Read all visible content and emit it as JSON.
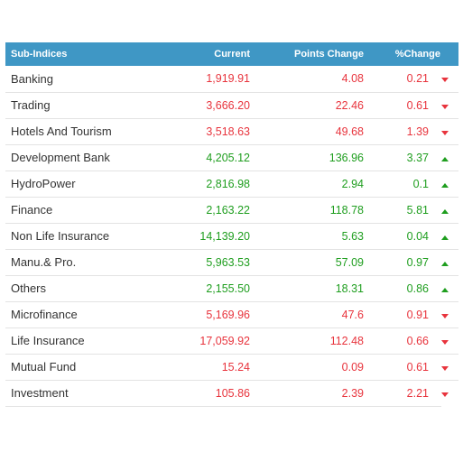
{
  "table": {
    "headers": {
      "name": "Sub-Indices",
      "current": "Current",
      "points": "Points Change",
      "percent": "%Change"
    },
    "rows": [
      {
        "name": "Banking",
        "current": "1,919.91",
        "points": "4.08",
        "percent": "0.21",
        "direction": "down"
      },
      {
        "name": "Trading",
        "current": "3,666.20",
        "points": "22.46",
        "percent": "0.61",
        "direction": "down"
      },
      {
        "name": "Hotels And Tourism",
        "current": "3,518.63",
        "points": "49.68",
        "percent": "1.39",
        "direction": "down"
      },
      {
        "name": "Development Bank",
        "current": "4,205.12",
        "points": "136.96",
        "percent": "3.37",
        "direction": "up"
      },
      {
        "name": "HydroPower",
        "current": "2,816.98",
        "points": "2.94",
        "percent": "0.1",
        "direction": "up"
      },
      {
        "name": "Finance",
        "current": "2,163.22",
        "points": "118.78",
        "percent": "5.81",
        "direction": "up"
      },
      {
        "name": "Non Life Insurance",
        "current": "14,139.20",
        "points": "5.63",
        "percent": "0.04",
        "direction": "up"
      },
      {
        "name": "Manu.& Pro.",
        "current": "5,963.53",
        "points": "57.09",
        "percent": "0.97",
        "direction": "up"
      },
      {
        "name": "Others",
        "current": "2,155.50",
        "points": "18.31",
        "percent": "0.86",
        "direction": "up"
      },
      {
        "name": "Microfinance",
        "current": "5,169.96",
        "points": "47.6",
        "percent": "0.91",
        "direction": "down"
      },
      {
        "name": "Life Insurance",
        "current": "17,059.92",
        "points": "112.48",
        "percent": "0.66",
        "direction": "down"
      },
      {
        "name": "Mutual Fund",
        "current": "15.24",
        "points": "0.09",
        "percent": "0.61",
        "direction": "down"
      },
      {
        "name": "Investment",
        "current": "105.86",
        "points": "2.39",
        "percent": "2.21",
        "direction": "down"
      }
    ]
  },
  "colors": {
    "header_bg": "#3f97c5",
    "up": "#1f9e1f",
    "down": "#e8343d"
  }
}
